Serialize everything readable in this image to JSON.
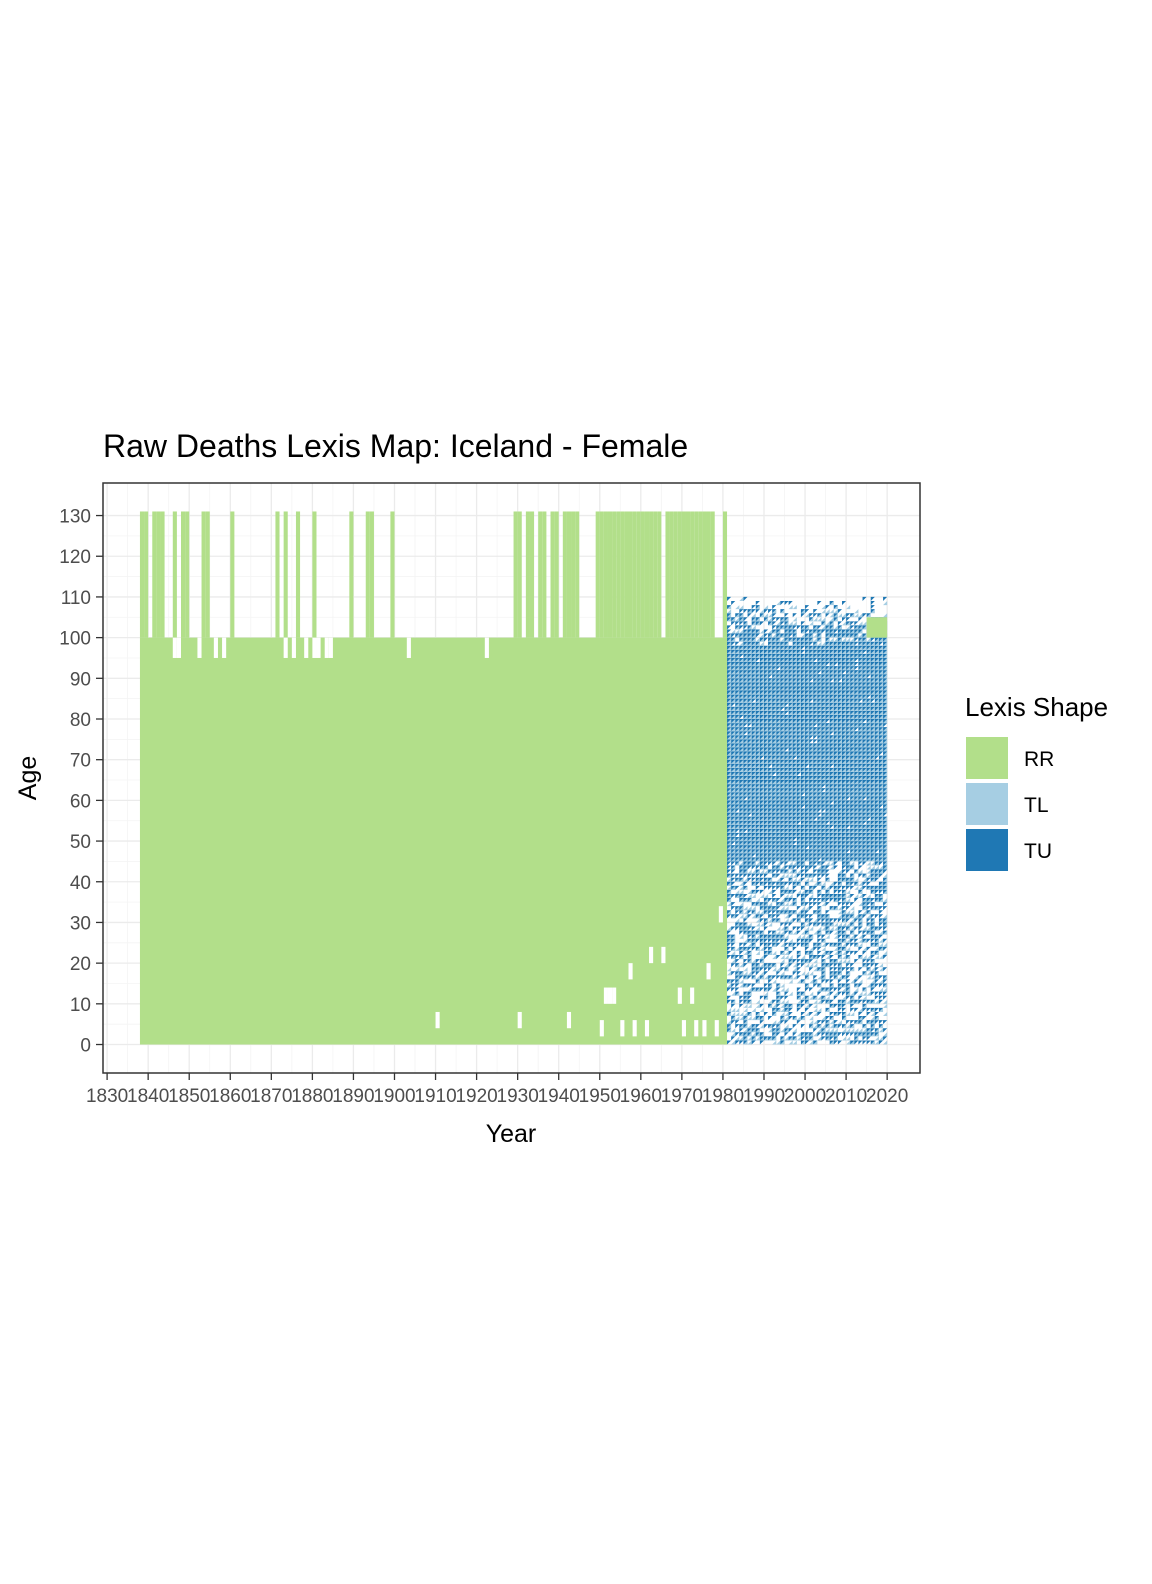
{
  "chart_data": {
    "type": "heatmap",
    "title": "Raw Deaths Lexis Map: Iceland - Female",
    "xlabel": "Year",
    "ylabel": "Age",
    "xlim": [
      1829,
      2028
    ],
    "ylim": [
      -7,
      138
    ],
    "x_ticks": [
      1830,
      1840,
      1850,
      1860,
      1870,
      1880,
      1890,
      1900,
      1910,
      1920,
      1930,
      1940,
      1950,
      1960,
      1970,
      1980,
      1990,
      2000,
      2010,
      2020
    ],
    "y_ticks": [
      0,
      10,
      20,
      30,
      40,
      50,
      60,
      70,
      80,
      90,
      100,
      110,
      120,
      130
    ],
    "grid": true,
    "legend": {
      "title": "Lexis Shape",
      "position": "right",
      "entries": [
        {
          "label": "RR",
          "color": "#b2df8a"
        },
        {
          "label": "TL",
          "color": "#a6cee3"
        },
        {
          "label": "TU",
          "color": "#1f78b4"
        }
      ]
    },
    "series": [
      {
        "name": "RR",
        "color": "#b2df8a",
        "regions": [
          {
            "x": [
              1838,
              1981
            ],
            "y": [
              0,
              100
            ],
            "shape": "rectangles"
          },
          {
            "x": [
              1838,
              1981
            ],
            "y": [
              100,
              131
            ],
            "shape": "rectangles",
            "note": "intermittent years"
          },
          {
            "x": [
              2015,
              2020
            ],
            "y": [
              100,
              105
            ],
            "shape": "rectangles"
          }
        ]
      },
      {
        "name": "TL",
        "color": "#a6cee3",
        "regions": [
          {
            "x": [
              1981,
              2020
            ],
            "y": [
              0,
              110
            ],
            "shape": "triangles"
          }
        ]
      },
      {
        "name": "TU",
        "color": "#1f78b4",
        "regions": [
          {
            "x": [
              1981,
              2020
            ],
            "y": [
              0,
              110
            ],
            "shape": "triangles"
          }
        ]
      }
    ]
  }
}
